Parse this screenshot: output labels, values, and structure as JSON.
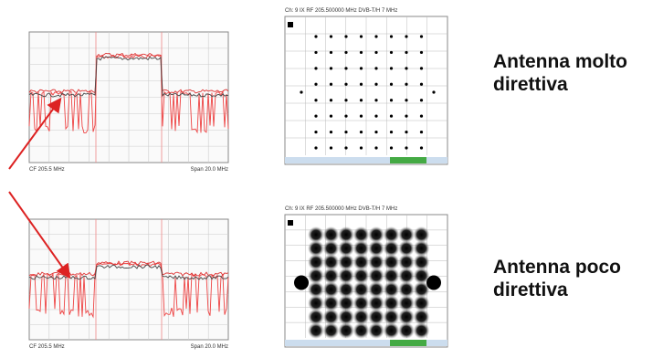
{
  "panels": [
    {
      "label": "Antenna molto direttiva",
      "spectrum": {
        "center": "CF 205.5 MHz",
        "span": "Span 20.0 MHz"
      },
      "constellation": {
        "header": "Ch: 9 IX RF 205.500000 MHz DVB-T/H 7 MHz"
      }
    },
    {
      "label": "Antenna poco direttiva",
      "spectrum": {
        "center": "CF 205.5 MHz",
        "span": "Span 20.0 MHz"
      },
      "constellation": {
        "header": "Ch: 9 IX RF 205.500000 MHz DVB-T/H 7 MHz"
      }
    }
  ]
}
